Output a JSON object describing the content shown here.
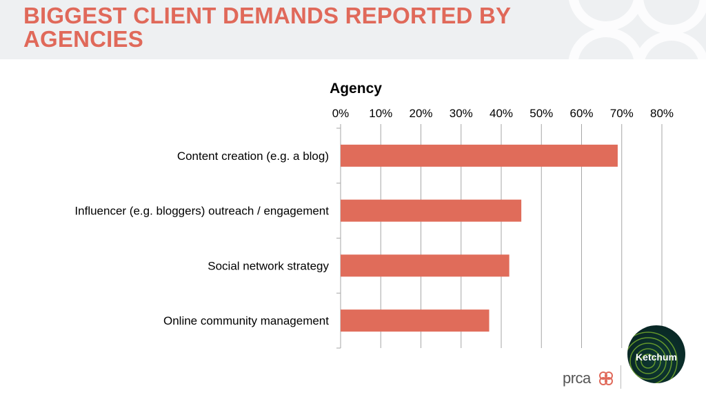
{
  "page": {
    "title": "BIGGEST CLIENT DEMANDS REPORTED BY AGENCIES"
  },
  "logos": {
    "prca": "prca",
    "ketchum": "Ketchum"
  },
  "colors": {
    "title": "#e0695a",
    "bar": "#e06c5a",
    "header_band": "#eef0f2"
  },
  "chart_data": {
    "type": "bar",
    "orientation": "horizontal",
    "title": "Agency",
    "categories": [
      "Content creation (e.g. a blog)",
      "Influencer (e.g. bloggers) outreach / engagement",
      "Social network strategy",
      "Online community management"
    ],
    "values": [
      69,
      45,
      42,
      37
    ],
    "xlim": [
      0,
      80
    ],
    "ticks": [
      0,
      10,
      20,
      30,
      40,
      50,
      60,
      70,
      80
    ],
    "tick_labels": [
      "0%",
      "10%",
      "20%",
      "30%",
      "40%",
      "50%",
      "60%",
      "70%",
      "80%"
    ],
    "value_axis_position": "top",
    "grid": true,
    "legend": "none"
  }
}
